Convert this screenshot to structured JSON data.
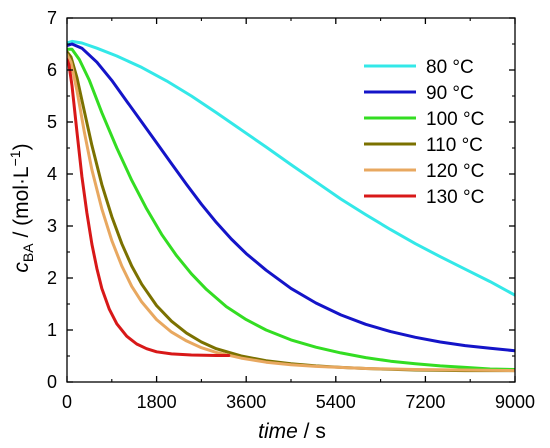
{
  "chart_data": {
    "type": "line",
    "xlabel_italic": "time",
    "xlabel_unit": " / s",
    "ylabel_symbol": "c",
    "ylabel_subscript": "BA",
    "ylabel_unit": " / (mol·L",
    "ylabel_superscript": "−1",
    "ylabel_close": ")",
    "xlim": [
      0,
      9000
    ],
    "ylim": [
      0,
      7
    ],
    "xticks": [
      0,
      1800,
      3600,
      5400,
      7200,
      9000
    ],
    "yticks": [
      0,
      1,
      2,
      3,
      4,
      5,
      6,
      7
    ],
    "legend_position": "top-right",
    "grid": false,
    "series": [
      {
        "name": "80 °C",
        "color": "#33e8e8",
        "points": [
          [
            0,
            6.52
          ],
          [
            100,
            6.55
          ],
          [
            300,
            6.52
          ],
          [
            600,
            6.42
          ],
          [
            1000,
            6.27
          ],
          [
            1500,
            6.05
          ],
          [
            2000,
            5.79
          ],
          [
            2500,
            5.5
          ],
          [
            3000,
            5.18
          ],
          [
            3500,
            4.85
          ],
          [
            4000,
            4.52
          ],
          [
            4500,
            4.18
          ],
          [
            5000,
            3.85
          ],
          [
            5500,
            3.52
          ],
          [
            6000,
            3.22
          ],
          [
            6500,
            2.93
          ],
          [
            7000,
            2.66
          ],
          [
            7500,
            2.41
          ],
          [
            8000,
            2.17
          ],
          [
            8500,
            1.93
          ],
          [
            9000,
            1.67
          ]
        ]
      },
      {
        "name": "90 °C",
        "color": "#1414c8",
        "points": [
          [
            0,
            6.47
          ],
          [
            100,
            6.5
          ],
          [
            300,
            6.42
          ],
          [
            600,
            6.15
          ],
          [
            900,
            5.8
          ],
          [
            1200,
            5.4
          ],
          [
            1500,
            5.0
          ],
          [
            1800,
            4.6
          ],
          [
            2100,
            4.2
          ],
          [
            2400,
            3.8
          ],
          [
            2700,
            3.42
          ],
          [
            3000,
            3.07
          ],
          [
            3300,
            2.75
          ],
          [
            3600,
            2.47
          ],
          [
            4000,
            2.15
          ],
          [
            4500,
            1.8
          ],
          [
            5000,
            1.52
          ],
          [
            5500,
            1.29
          ],
          [
            6000,
            1.11
          ],
          [
            6500,
            0.97
          ],
          [
            7000,
            0.86
          ],
          [
            7500,
            0.77
          ],
          [
            8000,
            0.7
          ],
          [
            8500,
            0.65
          ],
          [
            9000,
            0.6
          ]
        ]
      },
      {
        "name": "100 °C",
        "color": "#33dd22",
        "points": [
          [
            0,
            6.4
          ],
          [
            100,
            6.4
          ],
          [
            250,
            6.2
          ],
          [
            450,
            5.8
          ],
          [
            700,
            5.18
          ],
          [
            1000,
            4.5
          ],
          [
            1300,
            3.88
          ],
          [
            1600,
            3.33
          ],
          [
            1900,
            2.84
          ],
          [
            2200,
            2.43
          ],
          [
            2500,
            2.08
          ],
          [
            2800,
            1.78
          ],
          [
            3200,
            1.45
          ],
          [
            3600,
            1.2
          ],
          [
            4000,
            1.0
          ],
          [
            4500,
            0.81
          ],
          [
            5000,
            0.67
          ],
          [
            5500,
            0.56
          ],
          [
            6000,
            0.47
          ],
          [
            6500,
            0.4
          ],
          [
            7000,
            0.35
          ],
          [
            7500,
            0.31
          ],
          [
            8000,
            0.28
          ],
          [
            8500,
            0.25
          ],
          [
            9000,
            0.24
          ]
        ]
      },
      {
        "name": "110 °C",
        "color": "#7b7100",
        "points": [
          [
            0,
            6.35
          ],
          [
            80,
            6.25
          ],
          [
            200,
            5.85
          ],
          [
            350,
            5.2
          ],
          [
            500,
            4.55
          ],
          [
            700,
            3.8
          ],
          [
            900,
            3.18
          ],
          [
            1100,
            2.66
          ],
          [
            1300,
            2.23
          ],
          [
            1500,
            1.88
          ],
          [
            1800,
            1.47
          ],
          [
            2100,
            1.17
          ],
          [
            2400,
            0.94
          ],
          [
            2700,
            0.77
          ],
          [
            3000,
            0.64
          ],
          [
            3500,
            0.5
          ],
          [
            4000,
            0.41
          ],
          [
            4500,
            0.35
          ],
          [
            5000,
            0.31
          ],
          [
            5500,
            0.28
          ],
          [
            6000,
            0.26
          ],
          [
            7000,
            0.23
          ],
          [
            8000,
            0.22
          ],
          [
            9000,
            0.22
          ]
        ]
      },
      {
        "name": "120 °C",
        "color": "#e8a860",
        "points": [
          [
            0,
            6.3
          ],
          [
            80,
            6.15
          ],
          [
            200,
            5.6
          ],
          [
            350,
            4.8
          ],
          [
            500,
            4.08
          ],
          [
            700,
            3.33
          ],
          [
            900,
            2.72
          ],
          [
            1100,
            2.23
          ],
          [
            1300,
            1.84
          ],
          [
            1500,
            1.54
          ],
          [
            1800,
            1.2
          ],
          [
            2100,
            0.96
          ],
          [
            2400,
            0.79
          ],
          [
            2700,
            0.66
          ],
          [
            3000,
            0.57
          ],
          [
            3500,
            0.46
          ],
          [
            4000,
            0.38
          ],
          [
            4500,
            0.33
          ],
          [
            5000,
            0.3
          ],
          [
            6000,
            0.26
          ],
          [
            7000,
            0.24
          ],
          [
            8000,
            0.23
          ],
          [
            9000,
            0.22
          ]
        ]
      },
      {
        "name": "130 °C",
        "color": "#d81818",
        "points": [
          [
            0,
            6.2
          ],
          [
            40,
            6.1
          ],
          [
            100,
            5.7
          ],
          [
            200,
            4.8
          ],
          [
            300,
            3.95
          ],
          [
            400,
            3.25
          ],
          [
            500,
            2.65
          ],
          [
            600,
            2.18
          ],
          [
            700,
            1.8
          ],
          [
            850,
            1.4
          ],
          [
            1000,
            1.12
          ],
          [
            1200,
            0.88
          ],
          [
            1400,
            0.73
          ],
          [
            1600,
            0.64
          ],
          [
            1800,
            0.58
          ],
          [
            2100,
            0.54
          ],
          [
            2500,
            0.52
          ],
          [
            3000,
            0.51
          ],
          [
            3250,
            0.51
          ]
        ]
      }
    ]
  }
}
